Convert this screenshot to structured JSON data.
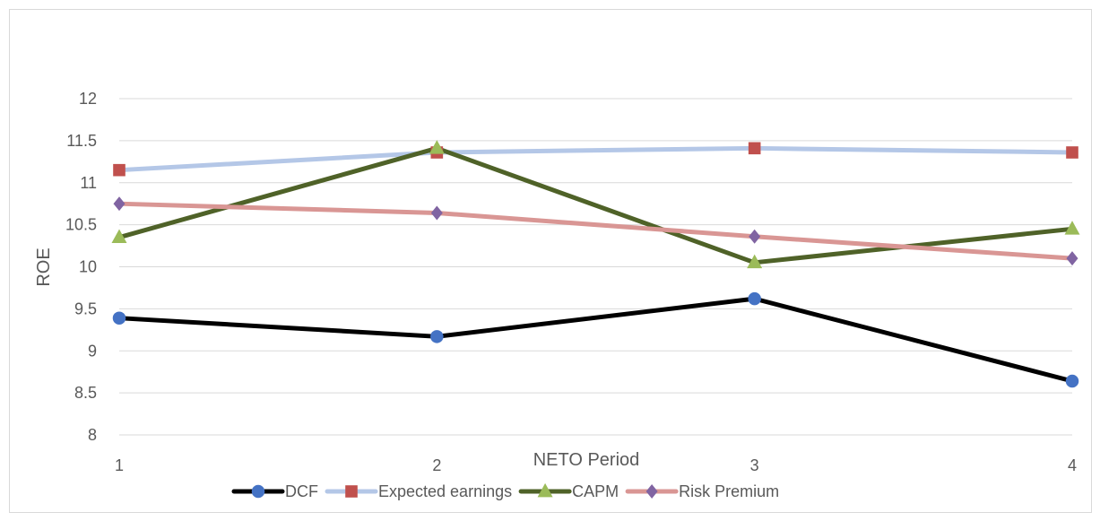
{
  "chart_data": {
    "type": "line",
    "title": "",
    "xlabel": "NETO Period",
    "ylabel": "ROE",
    "categories": [
      "1",
      "2",
      "3",
      "4"
    ],
    "ylim": [
      8,
      12
    ],
    "yticks": [
      8,
      8.5,
      9,
      9.5,
      10,
      10.5,
      11,
      11.5,
      12
    ],
    "ytick_labels": [
      "8",
      "8.5",
      "9",
      "9.5",
      "10",
      "10.5",
      "11",
      "11.5",
      "12"
    ],
    "grid": true,
    "legend_position": "bottom",
    "series": [
      {
        "name": "DCF",
        "values": [
          9.39,
          9.17,
          9.62,
          8.64
        ],
        "line_color": "#000000",
        "marker": "circle",
        "marker_color": "#4472c4"
      },
      {
        "name": "Expected earnings",
        "values": [
          11.15,
          11.36,
          11.41,
          11.36
        ],
        "line_color": "#b4c7e7",
        "marker": "square",
        "marker_color": "#c0504d"
      },
      {
        "name": "CAPM",
        "values": [
          10.35,
          11.41,
          10.05,
          10.45
        ],
        "line_color": "#4f6228",
        "marker": "triangle",
        "marker_color": "#9bbb59"
      },
      {
        "name": "Risk Premium",
        "values": [
          10.75,
          10.64,
          10.36,
          10.1
        ],
        "line_color": "#d99694",
        "marker": "diamond",
        "marker_color": "#8064a2"
      }
    ]
  }
}
